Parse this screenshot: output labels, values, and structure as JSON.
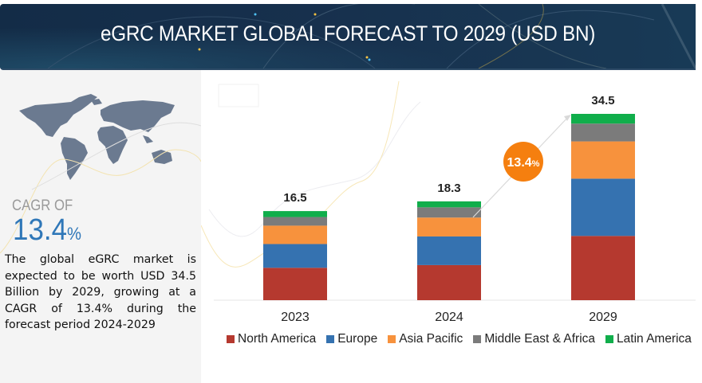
{
  "header": {
    "title": "eGRC MARKET GLOBAL FORECAST TO 2029 (USD BN)"
  },
  "left_panel": {
    "map_icon": "world-map-icon",
    "cagr_label": "CAGR OF",
    "cagr_number": "13.4",
    "cagr_percent": "%",
    "description": "The global eGRC market is expected to be worth USD 34.5 Billion by 2029, growing at a CAGR of 13.4% during the forecast period 2024-2029"
  },
  "chart_data": {
    "type": "bar",
    "stacked": true,
    "title": "eGRC MARKET GLOBAL FORECAST TO 2029 (USD BN)",
    "xlabel": "",
    "ylabel": "",
    "ylim": [
      0,
      34.5
    ],
    "grid": false,
    "legend_position": "bottom",
    "categories": [
      "2023",
      "2024",
      "2029"
    ],
    "totals": [
      "16.5",
      "18.3",
      "34.5"
    ],
    "total_values": [
      16.5,
      18.3,
      34.5
    ],
    "series": [
      {
        "name": "North America",
        "color": "#b5392f",
        "values": [
          6.0,
          6.5,
          11.9
        ]
      },
      {
        "name": "Europe",
        "color": "#3572b0",
        "values": [
          4.4,
          5.3,
          10.6
        ]
      },
      {
        "name": "Asia Pacific",
        "color": "#f7923d",
        "values": [
          3.4,
          3.5,
          6.9
        ]
      },
      {
        "name": "Middle East & Africa",
        "color": "#7b7b7b",
        "values": [
          1.6,
          1.9,
          3.3
        ]
      },
      {
        "name": "Latin America",
        "color": "#10ae4b",
        "values": [
          1.1,
          1.1,
          1.8
        ]
      }
    ],
    "annotation": {
      "number": "13.4",
      "unit": "%",
      "color": "#f57f0f"
    }
  }
}
